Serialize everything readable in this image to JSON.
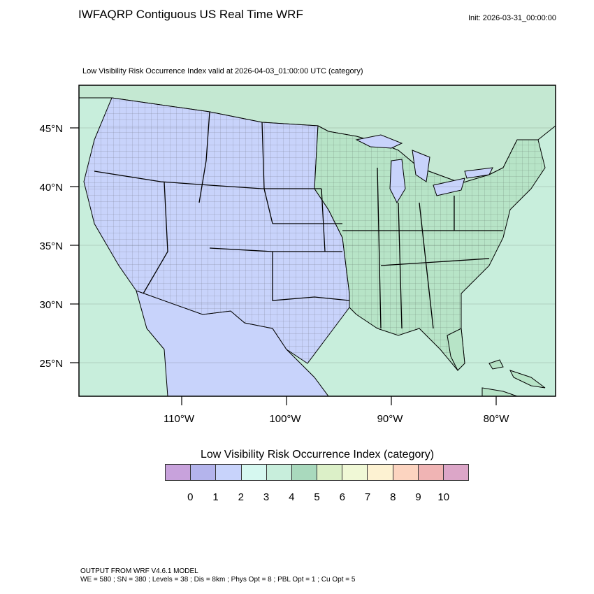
{
  "header": {
    "title": "IWFAQRP Contiguous US Real Time WRF",
    "init": "Init: 2026-03-31_00:00:00"
  },
  "map": {
    "subtitle": "Low Visibility Risk Occurrence Index valid at 2026-04-03_01:00:00 UTC   (category)",
    "lat_labels": [
      "45°N",
      "40°N",
      "35°N",
      "30°N",
      "25°N"
    ],
    "lon_labels": [
      "110°W",
      "100°W",
      "90°W",
      "80°W"
    ],
    "colors": {
      "ocean": "#c8eedc",
      "land_east": "#b7e4c7",
      "land_west": "#c8d3fb",
      "canada": "#c4e8d2",
      "mexico": "#c8d3fb",
      "lakes": "#c8d3fb"
    }
  },
  "legend": {
    "title": "Low Visibility Risk Occurrence Index  (category)",
    "labels": [
      "0",
      "1",
      "2",
      "3",
      "4",
      "5",
      "6",
      "7",
      "8",
      "9",
      "10"
    ],
    "colors": [
      "#c8a2dc",
      "#b4b4ec",
      "#c8d3fb",
      "#d6f8f0",
      "#c8eedc",
      "#a9d9bd",
      "#dcf0c8",
      "#f0f8d6",
      "#fdf2d2",
      "#fcd4c0",
      "#f0b4b4",
      "#dca6c8"
    ]
  },
  "footer": {
    "line1": "OUTPUT FROM WRF V4.6.1 MODEL",
    "line2": "WE = 580 ; SN = 380 ; Levels = 38 ; Dis = 8km ; Phys Opt = 8 ; PBL Opt = 1 ; Cu Opt = 5"
  }
}
